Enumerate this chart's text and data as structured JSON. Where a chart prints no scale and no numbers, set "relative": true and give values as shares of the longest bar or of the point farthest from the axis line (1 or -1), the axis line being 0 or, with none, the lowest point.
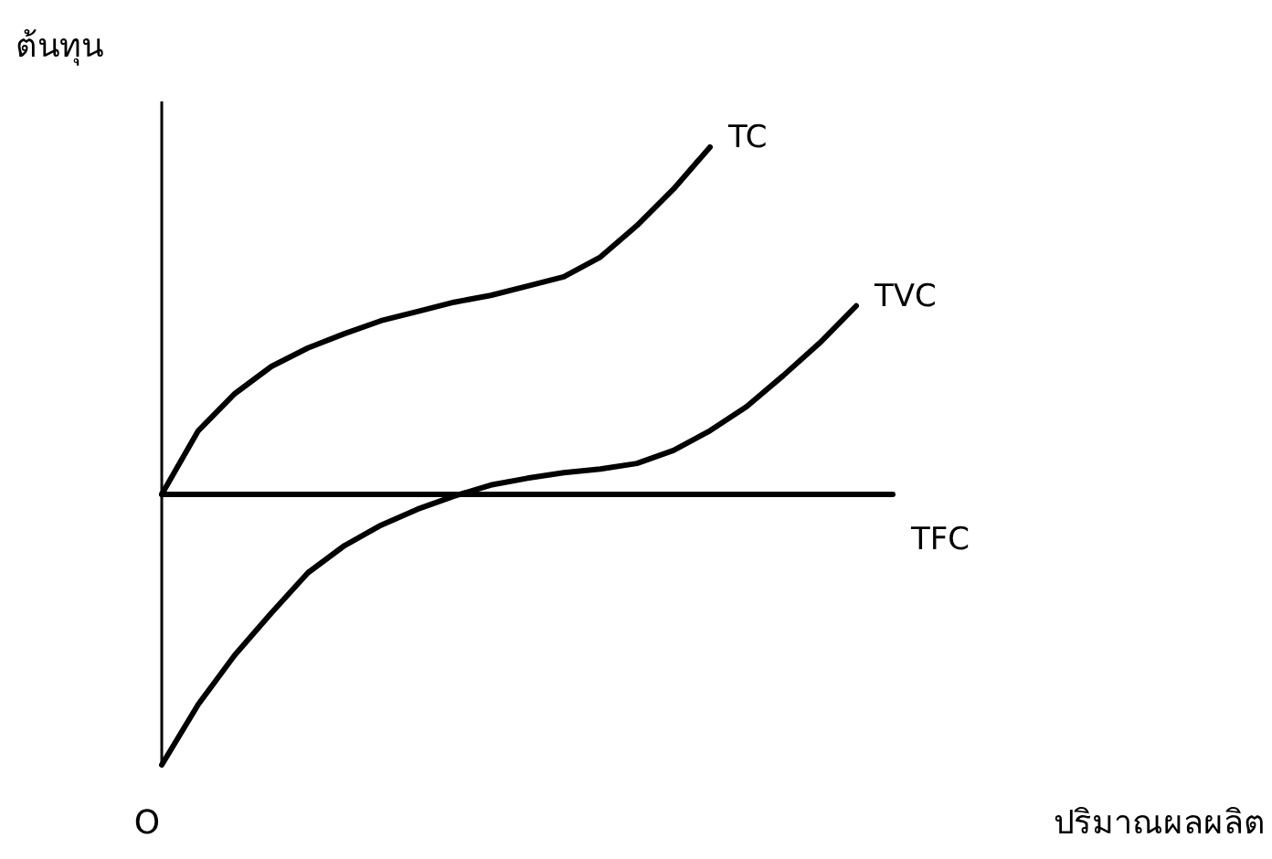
{
  "chart_data": {
    "type": "line",
    "relative": true,
    "xlabel": "ปริมาณผลผลิต",
    "ylabel": "ต้นทุน",
    "annotations": [
      "O"
    ],
    "grid": false,
    "legend": false,
    "line_style": "solid",
    "marker": "none",
    "categories": [
      null,
      null,
      null,
      null,
      null,
      null,
      null,
      null,
      null,
      null,
      null,
      null,
      null,
      null,
      null,
      null,
      null,
      null,
      null,
      null,
      null
    ],
    "series": [
      {
        "name": "TC",
        "color": "#000000",
        "values": [
          0.438,
          0.541,
          0.601,
          0.645,
          0.675,
          0.698,
          0.719,
          0.734,
          0.749,
          0.76,
          0.775,
          0.79,
          0.822,
          0.873,
          0.932,
          1.0,
          null,
          null,
          null,
          null,
          null
        ]
      },
      {
        "name": "TVC",
        "color": "#000000",
        "values": [
          0,
          0.098,
          0.178,
          0.246,
          0.311,
          0.355,
          0.388,
          0.414,
          0.435,
          0.453,
          0.464,
          0.473,
          0.479,
          0.488,
          0.509,
          0.541,
          0.58,
          0.63,
          0.683,
          0.743,
          null
        ]
      },
      {
        "name": "TFC",
        "color": "#000000",
        "values": [
          0.438,
          0.438,
          0.438,
          0.438,
          0.438,
          0.438,
          0.438,
          0.438,
          0.438,
          0.438,
          0.438,
          0.438,
          0.438,
          0.438,
          0.438,
          0.438,
          0.438,
          0.438,
          0.438,
          0.438,
          0.438
        ]
      }
    ]
  }
}
